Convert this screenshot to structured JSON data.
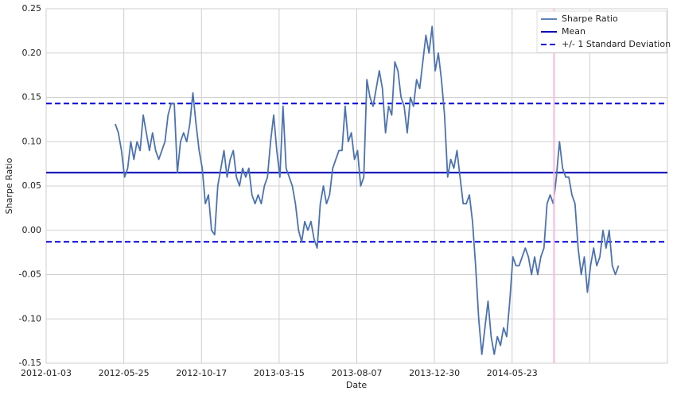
{
  "chart_data": {
    "type": "line",
    "xlabel": "Date",
    "ylabel": "Sharpe Ratio",
    "xlim": [
      0,
      800
    ],
    "xticks": [
      {
        "value": 0,
        "label": "2012-01-03"
      },
      {
        "value": 100,
        "label": "2012-05-25"
      },
      {
        "value": 200,
        "label": "2012-10-17"
      },
      {
        "value": 300,
        "label": "2013-03-15"
      },
      {
        "value": 400,
        "label": "2013-08-07"
      },
      {
        "value": 500,
        "label": "2013-12-30"
      },
      {
        "value": 600,
        "label": "2014-05-23"
      },
      {
        "value": 700,
        "label": null
      }
    ],
    "ylim": [
      -0.15,
      0.25
    ],
    "yticks": [
      -0.15,
      {
        "value": -0.1,
        "label": "-0.10"
      },
      -0.05,
      {
        "value": 0,
        "label": "0.00"
      },
      0.05,
      {
        "value": 0.1,
        "label": "0.10"
      },
      0.15,
      {
        "value": 0.2,
        "label": "0.20"
      },
      0.25
    ],
    "grid": true,
    "legend": "upper right",
    "vline": {
      "value": 654,
      "color": "#ffb6d9"
    },
    "x": [
      89,
      93,
      97,
      101,
      105,
      109,
      113,
      117,
      121,
      125,
      129,
      133,
      137,
      141,
      145,
      149,
      153,
      157,
      161,
      165,
      169,
      173,
      177,
      181,
      185,
      189,
      193,
      197,
      201,
      205,
      209,
      213,
      217,
      221,
      225,
      229,
      233,
      237,
      241,
      245,
      249,
      253,
      257,
      261,
      265,
      269,
      273,
      277,
      281,
      285,
      289,
      293,
      297,
      301,
      305,
      309,
      313,
      317,
      321,
      325,
      329,
      333,
      337,
      341,
      345,
      349,
      353,
      357,
      361,
      365,
      369,
      373,
      377,
      381,
      385,
      389,
      393,
      397,
      401,
      405,
      409,
      413,
      417,
      421,
      425,
      429,
      433,
      437,
      441,
      445,
      449,
      453,
      457,
      461,
      465,
      469,
      473,
      477,
      481,
      485,
      489,
      493,
      497,
      501,
      505,
      509,
      513,
      517,
      521,
      525,
      529,
      533,
      537,
      541,
      545,
      549,
      553,
      557,
      561,
      565,
      569,
      573,
      577,
      581,
      585,
      589,
      593,
      597,
      601,
      605,
      609,
      613,
      617,
      621,
      625,
      629,
      633,
      637,
      641,
      645,
      649,
      653,
      657,
      661,
      665,
      669,
      673,
      677,
      681,
      685,
      689,
      693,
      697,
      701,
      705,
      709,
      713,
      717,
      721,
      725,
      729,
      733,
      737
    ],
    "series": [
      {
        "name": "Sharpe Ratio",
        "color": "#4c72b0",
        "values": [
          0.12,
          0.11,
          0.09,
          0.06,
          0.07,
          0.1,
          0.08,
          0.1,
          0.09,
          0.13,
          0.11,
          0.09,
          0.11,
          0.09,
          0.08,
          0.09,
          0.1,
          0.13,
          0.143,
          0.143,
          0.065,
          0.1,
          0.11,
          0.1,
          0.12,
          0.155,
          0.12,
          0.09,
          0.07,
          0.03,
          0.04,
          0.0,
          -0.005,
          0.05,
          0.07,
          0.09,
          0.06,
          0.08,
          0.09,
          0.06,
          0.05,
          0.07,
          0.06,
          0.07,
          0.04,
          0.03,
          0.04,
          0.03,
          0.05,
          0.06,
          0.1,
          0.13,
          0.09,
          0.06,
          0.14,
          0.07,
          0.06,
          0.05,
          0.03,
          0.0,
          -0.013,
          0.01,
          0.0,
          0.01,
          -0.01,
          -0.02,
          0.03,
          0.05,
          0.03,
          0.04,
          0.07,
          0.08,
          0.09,
          0.09,
          0.14,
          0.1,
          0.11,
          0.08,
          0.09,
          0.05,
          0.06,
          0.17,
          0.15,
          0.14,
          0.16,
          0.18,
          0.16,
          0.11,
          0.14,
          0.13,
          0.19,
          0.18,
          0.15,
          0.14,
          0.11,
          0.15,
          0.14,
          0.17,
          0.16,
          0.19,
          0.22,
          0.2,
          0.23,
          0.18,
          0.2,
          0.17,
          0.13,
          0.06,
          0.08,
          0.07,
          0.09,
          0.06,
          0.03,
          0.03,
          0.04,
          0.01,
          -0.04,
          -0.1,
          -0.14,
          -0.11,
          -0.08,
          -0.12,
          -0.14,
          -0.12,
          -0.13,
          -0.11,
          -0.12,
          -0.08,
          -0.03,
          -0.04,
          -0.04,
          -0.03,
          -0.02,
          -0.03,
          -0.05,
          -0.03,
          -0.05,
          -0.03,
          -0.02,
          0.03,
          0.04,
          0.03,
          0.06,
          0.1,
          0.07,
          0.06,
          0.06,
          0.04,
          0.03,
          -0.02,
          -0.05,
          -0.03,
          -0.07,
          -0.04,
          -0.02,
          -0.04,
          -0.03,
          0.0,
          -0.02,
          0.0,
          -0.04,
          -0.05,
          -0.04
        ]
      }
    ],
    "hlines": [
      {
        "name": "Mean",
        "color": "#0000b3",
        "style": "solid",
        "values": [
          0.065
        ]
      },
      {
        "name": "+/- 1 Standard Deviation",
        "color": "#0000e0",
        "style": "dashed",
        "values": [
          0.143,
          -0.013
        ]
      }
    ]
  }
}
